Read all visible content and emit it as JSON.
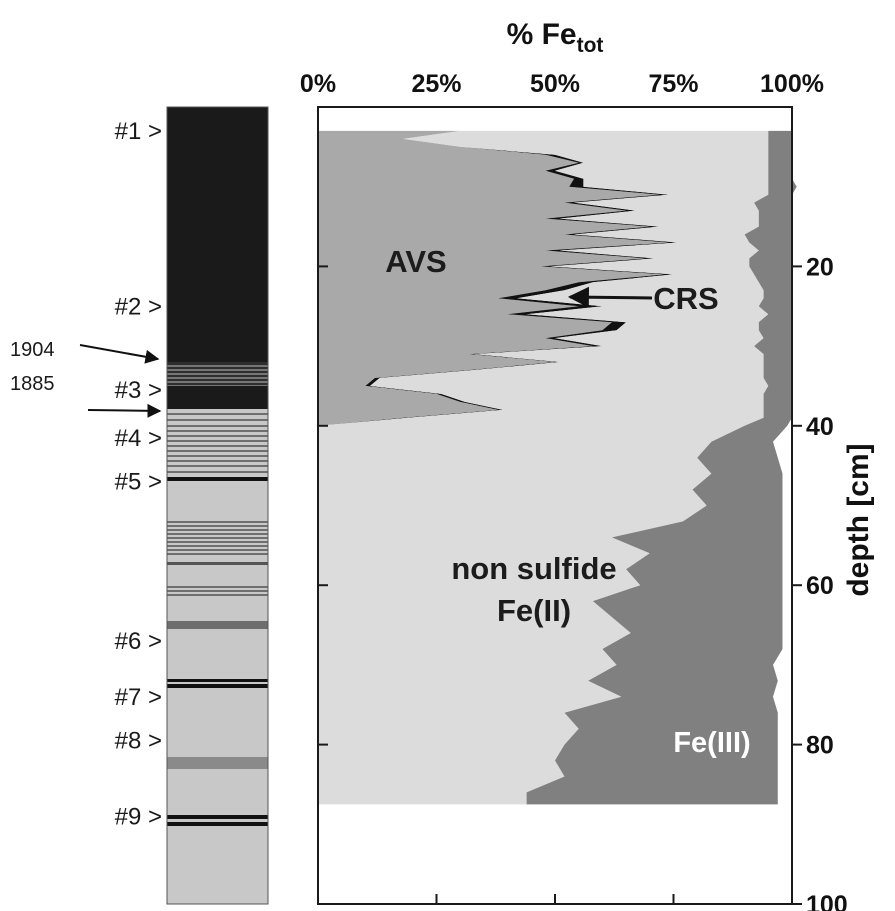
{
  "chart_data": {
    "type": "area",
    "title": "",
    "xlabel": "% Fe",
    "xlabel_subscript": "tot",
    "ylabel": "depth [cm]",
    "x_ticks": [
      "0%",
      "25%",
      "50%",
      "75%",
      "100%"
    ],
    "y_ticks": [
      "20",
      "40",
      "60",
      "80",
      "100"
    ],
    "xlim": [
      0,
      100
    ],
    "ylim": [
      0,
      100
    ],
    "y_inverted": true,
    "annotations": {
      "avs": "AVS",
      "crs": "CRS",
      "fe2_line1": "non sulfide",
      "fe2_line2": "Fe(II)",
      "fe3": "Fe(III)"
    },
    "colors": {
      "avs": "#a9a9a9",
      "crs": "#111111",
      "fe2": "#dcdcdc",
      "fe3": "#808080",
      "frame": "#1a1a1a"
    },
    "data_end_depth": 87.5,
    "depth": [
      3,
      4,
      5,
      6,
      7,
      8,
      9,
      10,
      11,
      12,
      13,
      14,
      15,
      16,
      17,
      18,
      19,
      20,
      21,
      22,
      23,
      24,
      25,
      26,
      27,
      28,
      29,
      30,
      31,
      32,
      33,
      34,
      35,
      36,
      37,
      38,
      39,
      40,
      42,
      44,
      46,
      48,
      50,
      52,
      54,
      56,
      58,
      60,
      62,
      64,
      66,
      68,
      70,
      72,
      74,
      76,
      78,
      80,
      82,
      84,
      86,
      87.5
    ],
    "series": [
      {
        "name": "AVS",
        "values": [
          30,
          18,
          30,
          48,
          55,
          48,
          54,
          53,
          72,
          52,
          65,
          48,
          70,
          52,
          74,
          48,
          69,
          47,
          73,
          55,
          48,
          38,
          55,
          40,
          62,
          60,
          48,
          58,
          32,
          50,
          32,
          12,
          10,
          25,
          30,
          38,
          18,
          0,
          0,
          0,
          0,
          0,
          0,
          0,
          0,
          0,
          0,
          0,
          0,
          0,
          0,
          0,
          0,
          0,
          0,
          0,
          0,
          0,
          0,
          0,
          0,
          0
        ]
      },
      {
        "name": "CRS",
        "values": [
          0,
          0,
          0,
          2,
          1,
          2,
          2,
          3,
          2,
          2,
          2,
          3,
          2,
          2,
          2,
          3,
          2,
          2,
          2,
          3,
          4,
          4,
          5,
          4,
          3,
          3,
          2,
          2,
          1,
          1,
          1,
          1,
          1,
          1,
          1,
          1,
          1,
          0,
          0,
          0,
          0,
          0,
          0,
          0,
          0,
          0,
          0,
          0,
          0,
          0,
          0,
          0,
          0,
          0,
          0,
          0,
          0,
          0,
          0,
          0,
          0,
          0
        ]
      },
      {
        "name": "non sulfide Fe(II)",
        "values": [
          65,
          77,
          65,
          45,
          39,
          45,
          39,
          39,
          21,
          38,
          26,
          42,
          21,
          36,
          15,
          42,
          20,
          42,
          17,
          35,
          42,
          52,
          33,
          51,
          28,
          30,
          44,
          32,
          61,
          43,
          61,
          81,
          84,
          68,
          63,
          55,
          75,
          90,
          83,
          80,
          83,
          79,
          82,
          77,
          62,
          70,
          65,
          68,
          58,
          62,
          66,
          60,
          63,
          57,
          64,
          52,
          55,
          52,
          50,
          52,
          44,
          44
        ]
      },
      {
        "name": "Fe(III)",
        "values": [
          5,
          5,
          5,
          5,
          5,
          5,
          5,
          6,
          5,
          8,
          7,
          7,
          7,
          10,
          9,
          7,
          9,
          9,
          8,
          7,
          6,
          6,
          7,
          5,
          7,
          7,
          6,
          8,
          6,
          6,
          6,
          6,
          5,
          6,
          6,
          6,
          6,
          9,
          13,
          17,
          15,
          19,
          16,
          21,
          36,
          28,
          33,
          30,
          40,
          36,
          32,
          38,
          33,
          40,
          32,
          45,
          42,
          45,
          47,
          45,
          53,
          53
        ]
      }
    ]
  },
  "core": {
    "samples": [
      {
        "label": "#1 >",
        "depth": 3
      },
      {
        "label": "#2 >",
        "depth": 25
      },
      {
        "label": "#3 >",
        "depth": 35.5
      },
      {
        "label": "#4 >",
        "depth": 41.5
      },
      {
        "label": "#5 >",
        "depth": 47
      },
      {
        "label": "#6 >",
        "depth": 67
      },
      {
        "label": "#7 >",
        "depth": 74
      },
      {
        "label": "#8 >",
        "depth": 79.5
      },
      {
        "label": "#9 >",
        "depth": 89
      }
    ],
    "years": [
      {
        "label": "1904",
        "arrow_depth": 34
      },
      {
        "label": "1885",
        "arrow_depth": 39
      }
    ],
    "colors": {
      "dark": "#1a1a1a",
      "light": "#c8c8c8",
      "mid": "#6e6e6e"
    }
  }
}
